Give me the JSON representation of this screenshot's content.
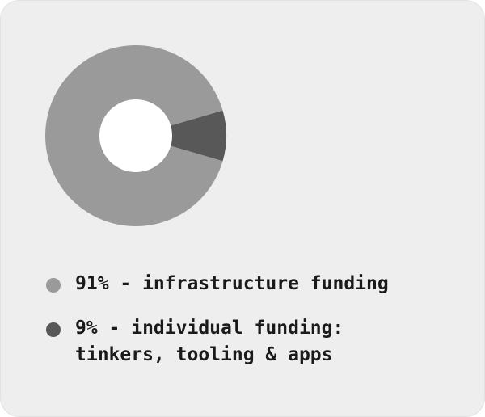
{
  "chart_data": {
    "type": "pie",
    "donut": true,
    "legend_position": "bottom",
    "slices": [
      {
        "value": 91,
        "label": "91% - infrastructure funding",
        "color": "#9a9a9a"
      },
      {
        "value": 9,
        "label": "9% - individual funding:\ntinkers, tooling & apps",
        "color": "#585858"
      }
    ]
  },
  "colors": {
    "background": "#eeeeee",
    "hole": "#ffffff",
    "text": "#1a1a1a"
  }
}
